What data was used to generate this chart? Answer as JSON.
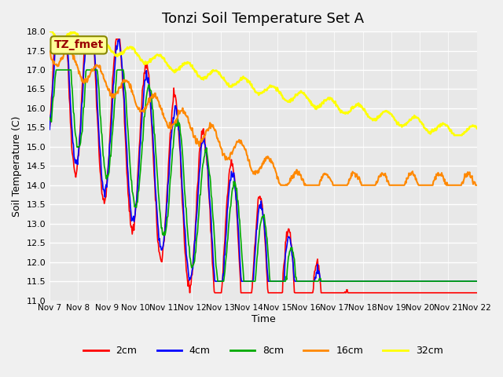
{
  "title": "Tonzi Soil Temperature Set A",
  "xlabel": "Time",
  "ylabel": "Soil Temperature (C)",
  "ylim": [
    11.0,
    18.0
  ],
  "yticks": [
    11.0,
    11.5,
    12.0,
    12.5,
    13.0,
    13.5,
    14.0,
    14.5,
    15.0,
    15.5,
    16.0,
    16.5,
    17.0,
    17.5,
    18.0
  ],
  "xtick_labels": [
    "Nov 7",
    "Nov 8",
    "Nov 9",
    "Nov 10",
    "Nov 11",
    "Nov 12",
    "Nov 13",
    "Nov 14",
    "Nov 15",
    "Nov 16",
    "Nov 17",
    "Nov 18",
    "Nov 19",
    "Nov 20",
    "Nov 21",
    "Nov 22"
  ],
  "colors": {
    "2cm": "#ff0000",
    "4cm": "#0000ff",
    "8cm": "#00aa00",
    "16cm": "#ff8800",
    "32cm": "#ffff00"
  },
  "legend_label": "TZ_fmet",
  "legend_bg": "#ffff99",
  "legend_border": "#888800",
  "fig_bg": "#f0f0f0",
  "plot_bg": "#e8e8e8"
}
